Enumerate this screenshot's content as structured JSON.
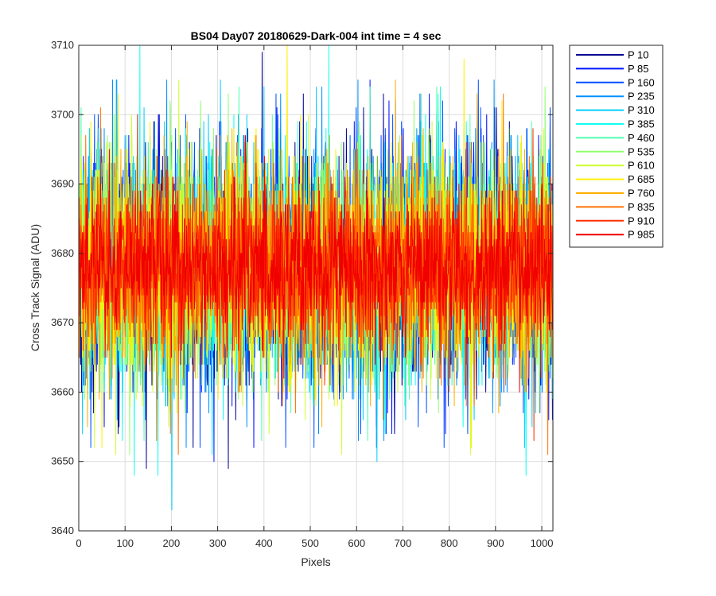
{
  "chart_data": {
    "type": "line",
    "title": "BS04 Day07 20180629-Dark-004 int time = 4 sec",
    "xlabel": "Pixels",
    "ylabel": "Cross Track Signal (ADU)",
    "xlim": [
      0,
      1024
    ],
    "ylim": [
      3640,
      3710
    ],
    "xticks": [
      0,
      100,
      200,
      300,
      400,
      500,
      600,
      700,
      800,
      900,
      1000
    ],
    "yticks": [
      3640,
      3650,
      3660,
      3670,
      3680,
      3690,
      3700,
      3710
    ],
    "grid": true,
    "legend_position": "outside-top-right",
    "n_pixels": 1024,
    "series": [
      {
        "name": "P 10",
        "color": "#00008f",
        "mean": 3678,
        "sd": 8.5,
        "min": 3649,
        "max": 3709
      },
      {
        "name": "P 85",
        "color": "#0010ff",
        "mean": 3678,
        "sd": 8.5,
        "min": 3650,
        "max": 3705
      },
      {
        "name": "P 160",
        "color": "#0050ff",
        "mean": 3678,
        "sd": 8.5,
        "min": 3652,
        "max": 3705
      },
      {
        "name": "P 235",
        "color": "#0090ff",
        "mean": 3678,
        "sd": 8.5,
        "min": 3652,
        "max": 3705
      },
      {
        "name": "P 310",
        "color": "#00cfff",
        "mean": 3678,
        "sd": 8.5,
        "min": 3643,
        "max": 3705
      },
      {
        "name": "P 385",
        "color": "#10ffef",
        "mean": 3678,
        "sd": 8.5,
        "min": 3648,
        "max": 3710
      },
      {
        "name": "P 460",
        "color": "#50ffaf",
        "mean": 3678,
        "sd": 8,
        "min": 3653,
        "max": 3704
      },
      {
        "name": "P 535",
        "color": "#8fff70",
        "mean": 3678,
        "sd": 8,
        "min": 3651,
        "max": 3704
      },
      {
        "name": "P 610",
        "color": "#cfff30",
        "mean": 3678,
        "sd": 8,
        "min": 3651,
        "max": 3705
      },
      {
        "name": "P 685",
        "color": "#ffef00",
        "mean": 3678,
        "sd": 8,
        "min": 3652,
        "max": 3710
      },
      {
        "name": "P 760",
        "color": "#ffaf00",
        "mean": 3678,
        "sd": 7.5,
        "min": 3655,
        "max": 3705
      },
      {
        "name": "P 835",
        "color": "#ff7000",
        "mean": 3678,
        "sd": 7,
        "min": 3651,
        "max": 3703
      },
      {
        "name": "P 910",
        "color": "#ff3000",
        "mean": 3678,
        "sd": 6,
        "min": 3653,
        "max": 3700
      },
      {
        "name": "P 985",
        "color": "#f00000",
        "mean": 3678,
        "sd": 5.5,
        "min": 3660,
        "max": 3697
      }
    ]
  }
}
